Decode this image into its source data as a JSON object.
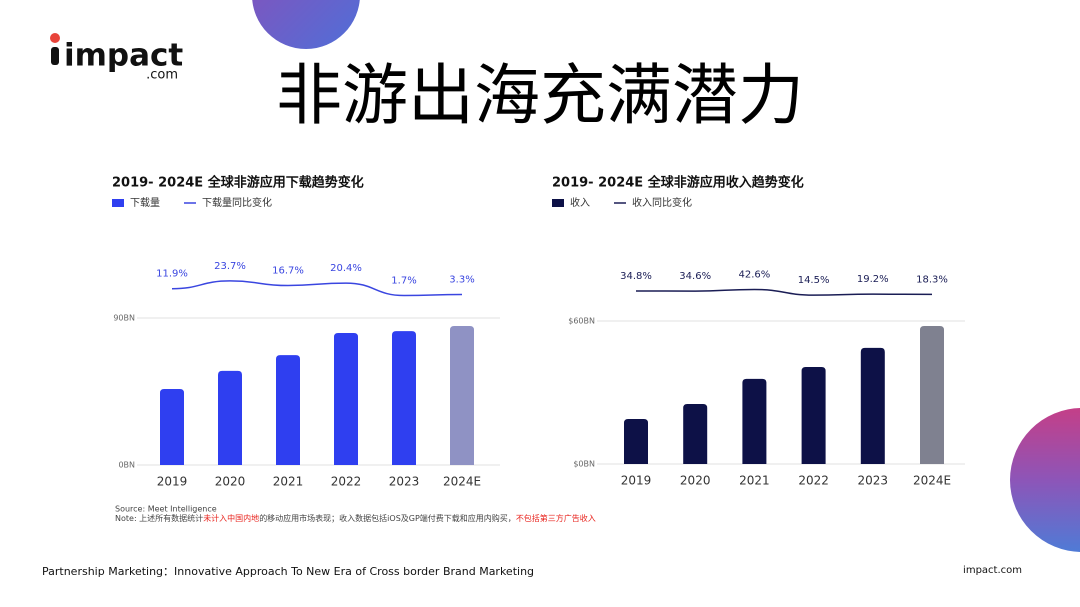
{
  "logo": {
    "name": "impact",
    "suffix": ".com"
  },
  "title": "非游出海充满潜力",
  "chart_data": [
    {
      "type": "bar",
      "title": "2019- 2024E 全球非游应用下载趋势变化",
      "categories": [
        "2019",
        "2020",
        "2021",
        "2022",
        "2023",
        "2024E"
      ],
      "series": [
        {
          "name": "下载量",
          "color": "#2f3ff0",
          "colors": [
            "#2f3ff0",
            "#2f3ff0",
            "#2f3ff0",
            "#2f3ff0",
            "#2f3ff0",
            "#8f92c4"
          ],
          "values": [
            46.5,
            57.6,
            67.3,
            80.8,
            82,
            85.1
          ]
        },
        {
          "name": "下载量同比变化",
          "type": "line",
          "axis": "y2",
          "color": "#3a46e0",
          "values": [
            11.9,
            23.7,
            16.7,
            20.4,
            1.7,
            3.3
          ],
          "value_labels": [
            "11.9%",
            "23.7%",
            "16.7%",
            "20.4%",
            "1.7%",
            "3.3%"
          ]
        }
      ],
      "ylim": [
        0,
        90
      ],
      "yticks": [
        {
          "value": 0,
          "label": "0BN"
        },
        {
          "value": 90,
          "label": "90BN"
        }
      ],
      "y2lim": [
        -20,
        40
      ],
      "grid": true
    },
    {
      "type": "bar",
      "title": "2019- 2024E 全球非游应用收入趋势变化",
      "categories": [
        "2019",
        "2020",
        "2021",
        "2022",
        "2023",
        "2024E"
      ],
      "series": [
        {
          "name": "收入",
          "color": "#0d1147",
          "colors": [
            "#0d1147",
            "#0d1147",
            "#0d1147",
            "#0d1147",
            "#0d1147",
            "#7f8190"
          ],
          "values": [
            18.9,
            25.2,
            35.7,
            40.7,
            48.7,
            57.9
          ]
        },
        {
          "name": "收入同比变化",
          "type": "line",
          "axis": "y2",
          "color": "#1a1d55",
          "values": [
            34.8,
            34.6,
            42.6,
            14.5,
            19.2,
            18.3
          ],
          "value_labels": [
            "34.8%",
            "34.6%",
            "42.6%",
            "14.5%",
            "19.2%",
            "18.3%"
          ]
        }
      ],
      "ylim": [
        0,
        60
      ],
      "yticks": [
        {
          "value": 0,
          "label": "$0BN"
        },
        {
          "value": 60,
          "label": "$60BN"
        }
      ],
      "y2lim": [
        -60,
        140
      ],
      "grid": true
    }
  ],
  "source": "Source: Meet Intelligence",
  "note": [
    {
      "text": "Note: 上述所有数据统计",
      "highlight": false
    },
    {
      "text": "未计入中国内地",
      "highlight": true
    },
    {
      "text": "的移动应用市场表现；收入数据包括iOS及GP端付费下载和应用内购买，",
      "highlight": false
    },
    {
      "text": "不包括第三方广告收入",
      "highlight": true
    }
  ],
  "footer": {
    "left": "Partnership Marketing：Innovative Approach To New Era of Cross border Brand Marketing",
    "right": "impact.com"
  }
}
